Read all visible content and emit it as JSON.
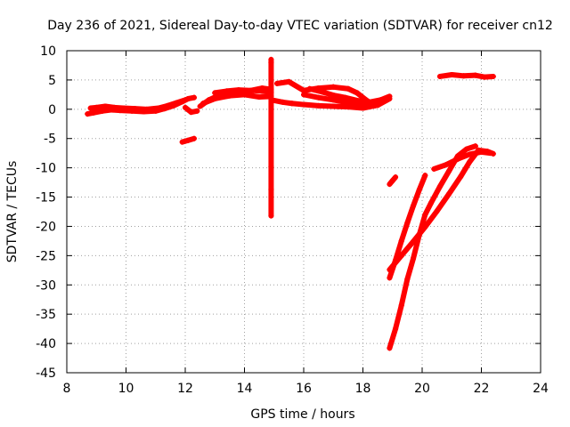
{
  "chart_data": {
    "type": "scatter",
    "title": "Day 236 of 2021, Sidereal Day-to-day VTEC variation (SDTVAR) for receiver cn12",
    "xlabel": "GPS time / hours",
    "ylabel": "SDTVAR / TECUs",
    "xlim": [
      8,
      24
    ],
    "ylim": [
      -45,
      10
    ],
    "xticks": [
      8,
      10,
      12,
      14,
      16,
      18,
      20,
      22,
      24
    ],
    "yticks": [
      10,
      5,
      0,
      -5,
      -10,
      -15,
      -20,
      -25,
      -30,
      -35,
      -40,
      -45
    ],
    "grid": true,
    "marker": "+",
    "colors": {
      "series": "#ff0000",
      "grid": "#a0a0a0",
      "axis": "#000000"
    },
    "series": [
      {
        "name": "band_morning",
        "points": [
          [
            8.7,
            -0.8
          ],
          [
            8.9,
            -0.6
          ],
          [
            9.2,
            -0.3
          ],
          [
            9.5,
            -0.1
          ],
          [
            9.8,
            -0.2
          ],
          [
            10.2,
            -0.3
          ],
          [
            10.6,
            -0.4
          ],
          [
            11.0,
            -0.3
          ],
          [
            11.3,
            0.1
          ],
          [
            11.6,
            0.6
          ],
          [
            11.9,
            1.3
          ],
          [
            12.1,
            1.8
          ],
          [
            12.3,
            2.0
          ]
        ]
      },
      {
        "name": "band_morning_upper",
        "points": [
          [
            8.8,
            0.2
          ],
          [
            9.0,
            0.3
          ],
          [
            9.3,
            0.5
          ],
          [
            9.6,
            0.3
          ],
          [
            9.9,
            0.2
          ],
          [
            10.3,
            0.1
          ],
          [
            10.7,
            0.0
          ],
          [
            11.1,
            0.2
          ],
          [
            11.4,
            0.6
          ],
          [
            11.7,
            1.1
          ],
          [
            12.0,
            1.6
          ]
        ]
      },
      {
        "name": "short_dip_12h",
        "points": [
          [
            11.9,
            -5.6
          ],
          [
            12.1,
            -5.3
          ],
          [
            12.3,
            -5.0
          ]
        ]
      },
      {
        "name": "short_arc_12h",
        "points": [
          [
            12.0,
            0.3
          ],
          [
            12.2,
            -0.5
          ],
          [
            12.4,
            -0.3
          ]
        ]
      },
      {
        "name": "band_midday",
        "points": [
          [
            12.5,
            0.5
          ],
          [
            12.8,
            1.6
          ],
          [
            13.1,
            2.3
          ],
          [
            13.4,
            2.8
          ],
          [
            13.7,
            3.0
          ],
          [
            14.0,
            3.0
          ],
          [
            14.3,
            3.2
          ],
          [
            14.6,
            3.1
          ],
          [
            14.9,
            2.9
          ]
        ]
      },
      {
        "name": "band_midday_upper",
        "points": [
          [
            13.0,
            2.8
          ],
          [
            13.4,
            3.1
          ],
          [
            13.8,
            3.3
          ],
          [
            14.2,
            3.2
          ],
          [
            14.6,
            3.6
          ],
          [
            14.9,
            3.4
          ]
        ]
      },
      {
        "name": "band_midday_lower",
        "points": [
          [
            12.6,
            1.0
          ],
          [
            13.0,
            1.8
          ],
          [
            13.5,
            2.3
          ],
          [
            14.0,
            2.5
          ],
          [
            14.5,
            2.1
          ],
          [
            14.9,
            2.2
          ]
        ]
      },
      {
        "name": "outliers_15h",
        "points": [
          [
            14.9,
            8.5
          ],
          [
            14.9,
            8.0
          ],
          [
            14.9,
            -9.8
          ],
          [
            14.9,
            -13.7
          ],
          [
            14.9,
            -18.2
          ]
        ]
      },
      {
        "name": "band_afternoon",
        "points": [
          [
            15.0,
            1.5
          ],
          [
            15.3,
            1.2
          ],
          [
            15.6,
            1.0
          ],
          [
            16.0,
            0.8
          ],
          [
            16.5,
            0.6
          ],
          [
            17.0,
            0.5
          ],
          [
            17.5,
            0.4
          ],
          [
            18.0,
            0.2
          ],
          [
            18.5,
            0.7
          ],
          [
            18.9,
            1.8
          ]
        ]
      },
      {
        "name": "arc_afternoon_1",
        "points": [
          [
            15.1,
            4.4
          ],
          [
            15.5,
            4.7
          ],
          [
            16.0,
            3.2
          ],
          [
            16.5,
            3.6
          ],
          [
            17.0,
            3.8
          ],
          [
            17.5,
            3.5
          ],
          [
            17.8,
            2.8
          ],
          [
            18.1,
            1.6
          ],
          [
            18.4,
            0.6
          ]
        ]
      },
      {
        "name": "arc_afternoon_2",
        "points": [
          [
            16.0,
            2.5
          ],
          [
            16.5,
            2.0
          ],
          [
            17.0,
            1.6
          ],
          [
            17.5,
            1.1
          ],
          [
            18.0,
            0.9
          ],
          [
            18.5,
            1.4
          ],
          [
            18.9,
            2.2
          ]
        ]
      },
      {
        "name": "arc_afternoon_3",
        "points": [
          [
            16.2,
            3.5
          ],
          [
            16.6,
            3.0
          ],
          [
            17.0,
            2.4
          ],
          [
            17.4,
            2.0
          ],
          [
            17.8,
            1.5
          ],
          [
            18.2,
            1.2
          ],
          [
            18.6,
            1.6
          ]
        ]
      },
      {
        "name": "evening_plateau",
        "points": [
          [
            20.6,
            5.6
          ],
          [
            21.0,
            5.9
          ],
          [
            21.4,
            5.7
          ],
          [
            21.8,
            5.8
          ],
          [
            22.1,
            5.5
          ],
          [
            22.4,
            5.6
          ]
        ]
      },
      {
        "name": "evening_steep_1",
        "points": [
          [
            18.9,
            -40.8
          ],
          [
            19.1,
            -37.5
          ],
          [
            19.3,
            -33.5
          ],
          [
            19.5,
            -29.0
          ],
          [
            19.7,
            -25.5
          ],
          [
            19.9,
            -21.5
          ],
          [
            20.1,
            -18.0
          ],
          [
            20.3,
            -16.0
          ],
          [
            20.6,
            -13.2
          ],
          [
            20.9,
            -10.6
          ],
          [
            21.2,
            -8.0
          ],
          [
            21.5,
            -6.8
          ],
          [
            21.8,
            -6.3
          ]
        ]
      },
      {
        "name": "evening_steep_2",
        "points": [
          [
            18.9,
            -28.8
          ],
          [
            19.1,
            -25.8
          ],
          [
            19.3,
            -22.5
          ],
          [
            19.5,
            -19.4
          ],
          [
            19.7,
            -16.5
          ],
          [
            19.9,
            -13.8
          ],
          [
            20.1,
            -11.3
          ]
        ]
      },
      {
        "name": "evening_steep_3",
        "points": [
          [
            18.9,
            -27.4
          ],
          [
            19.3,
            -25.0
          ],
          [
            19.7,
            -22.6
          ],
          [
            20.1,
            -20.1
          ],
          [
            20.5,
            -17.4
          ],
          [
            20.9,
            -14.5
          ],
          [
            21.3,
            -11.5
          ],
          [
            21.6,
            -9.0
          ],
          [
            21.9,
            -7.0
          ],
          [
            22.2,
            -7.2
          ],
          [
            22.4,
            -7.6
          ]
        ]
      },
      {
        "name": "evening_short",
        "points": [
          [
            18.9,
            -12.8
          ],
          [
            19.0,
            -12.2
          ],
          [
            19.1,
            -11.6
          ]
        ]
      },
      {
        "name": "evening_rise",
        "points": [
          [
            20.4,
            -10.2
          ],
          [
            20.8,
            -9.5
          ],
          [
            21.2,
            -8.5
          ],
          [
            21.6,
            -7.7
          ],
          [
            22.0,
            -7.3
          ],
          [
            22.3,
            -7.5
          ]
        ]
      }
    ]
  }
}
